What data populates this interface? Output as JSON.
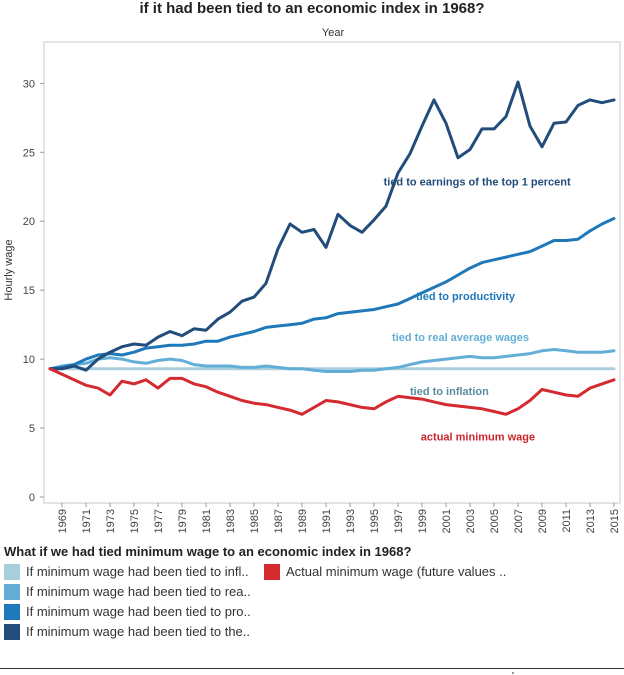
{
  "title": "if it had been tied to an economic index in 1968?",
  "chart_data": {
    "type": "line",
    "axis_top_label": "Year",
    "ylabel": "Hourly wage",
    "ylim": [
      0,
      33
    ],
    "yticks": [
      0,
      5,
      10,
      15,
      20,
      25,
      30
    ],
    "x": [
      1968,
      1969,
      1970,
      1971,
      1972,
      1973,
      1974,
      1975,
      1976,
      1977,
      1978,
      1979,
      1980,
      1981,
      1982,
      1983,
      1984,
      1985,
      1986,
      1987,
      1988,
      1989,
      1990,
      1991,
      1992,
      1993,
      1994,
      1995,
      1996,
      1997,
      1998,
      1999,
      2000,
      2001,
      2002,
      2003,
      2004,
      2005,
      2006,
      2007,
      2008,
      2009,
      2010,
      2011,
      2012,
      2013,
      2014,
      2015
    ],
    "xticks": [
      "1969",
      "1971",
      "1973",
      "1975",
      "1977",
      "1979",
      "1981",
      "1983",
      "1985",
      "1987",
      "1989",
      "1991",
      "1993",
      "1995",
      "1997",
      "1999",
      "2001",
      "2003",
      "2005",
      "2007",
      "2009",
      "2011",
      "2013",
      "2015"
    ],
    "series": [
      {
        "name": "tied to inflation",
        "color": "#aacfdc",
        "label_color": "#5a8e9e",
        "values": [
          9.3,
          9.3,
          9.3,
          9.3,
          9.3,
          9.3,
          9.3,
          9.3,
          9.3,
          9.3,
          9.3,
          9.3,
          9.3,
          9.3,
          9.3,
          9.3,
          9.3,
          9.3,
          9.3,
          9.3,
          9.3,
          9.3,
          9.3,
          9.3,
          9.3,
          9.3,
          9.3,
          9.3,
          9.3,
          9.3,
          9.3,
          9.3,
          9.3,
          9.3,
          9.3,
          9.3,
          9.3,
          9.3,
          9.3,
          9.3,
          9.3,
          9.3,
          9.3,
          9.3,
          9.3,
          9.3,
          9.3,
          9.3
        ]
      },
      {
        "name": "tied to real average wages",
        "color": "#62aed6",
        "label_color": "#62aed6",
        "values": [
          9.3,
          9.5,
          9.6,
          9.7,
          10.0,
          10.1,
          10.0,
          9.8,
          9.7,
          9.9,
          10.0,
          9.9,
          9.6,
          9.5,
          9.5,
          9.5,
          9.4,
          9.4,
          9.5,
          9.4,
          9.3,
          9.3,
          9.2,
          9.1,
          9.1,
          9.1,
          9.2,
          9.2,
          9.3,
          9.4,
          9.6,
          9.8,
          9.9,
          10.0,
          10.1,
          10.2,
          10.1,
          10.1,
          10.2,
          10.3,
          10.4,
          10.6,
          10.7,
          10.6,
          10.5,
          10.5,
          10.5,
          10.6
        ]
      },
      {
        "name": "tied to productivity",
        "color": "#1f78b9",
        "label_color": "#1f78b9",
        "values": [
          9.3,
          9.4,
          9.6,
          10.0,
          10.3,
          10.4,
          10.3,
          10.5,
          10.8,
          10.9,
          11.0,
          11.0,
          11.1,
          11.3,
          11.3,
          11.6,
          11.8,
          12.0,
          12.3,
          12.4,
          12.5,
          12.6,
          12.9,
          13.0,
          13.3,
          13.4,
          13.5,
          13.6,
          13.8,
          14.0,
          14.4,
          14.8,
          15.2,
          15.6,
          16.1,
          16.6,
          17.0,
          17.2,
          17.4,
          17.6,
          17.8,
          18.2,
          18.6,
          18.6,
          18.7,
          19.3,
          19.8,
          20.2
        ]
      },
      {
        "name": "tied to earnings of the top 1 percent",
        "color": "#224c7a",
        "label_color": "#224c7a",
        "values": [
          9.3,
          9.3,
          9.5,
          9.2,
          10.0,
          10.5,
          10.9,
          11.1,
          11.0,
          11.6,
          12.0,
          11.7,
          12.2,
          12.1,
          12.9,
          13.4,
          14.2,
          14.5,
          15.5,
          18.0,
          19.8,
          19.2,
          19.4,
          18.1,
          20.5,
          19.7,
          19.2,
          20.1,
          21.1,
          23.5,
          24.9,
          26.9,
          28.8,
          27.1,
          24.6,
          25.2,
          26.7,
          26.7,
          27.6,
          30.1,
          26.9,
          25.4,
          27.1,
          27.2,
          28.4,
          28.8,
          28.6,
          28.8
        ]
      },
      {
        "name": "actual minimum wage",
        "color": "#d42a30",
        "label_color": "#c9252c",
        "values": [
          9.3,
          8.9,
          8.5,
          8.1,
          7.9,
          7.4,
          8.4,
          8.2,
          8.5,
          7.9,
          8.6,
          8.6,
          8.2,
          8.0,
          7.6,
          7.3,
          7.0,
          6.8,
          6.7,
          6.5,
          6.3,
          6.0,
          6.5,
          7.0,
          6.9,
          6.7,
          6.5,
          6.4,
          6.9,
          7.3,
          7.2,
          7.1,
          6.9,
          6.7,
          6.6,
          6.5,
          6.4,
          6.2,
          6.0,
          6.4,
          7.0,
          7.8,
          7.6,
          7.4,
          7.3,
          7.9,
          8.2,
          8.5
        ]
      }
    ]
  },
  "legend": {
    "title": "What if we had tied minimum wage to an economic index in 1968?",
    "items": [
      {
        "label": "If minimum wage had been tied to infl..",
        "color": "#aacfdc"
      },
      {
        "label": "If minimum wage had been tied to rea..",
        "color": "#62aed6"
      },
      {
        "label": "If minimum wage had been tied to pro..",
        "color": "#1f78b9"
      },
      {
        "label": "If minimum wage had been tied to the..",
        "color": "#224c7a"
      },
      {
        "label": "Actual minimum wage (future values ..",
        "color": "#d42a30"
      }
    ]
  }
}
